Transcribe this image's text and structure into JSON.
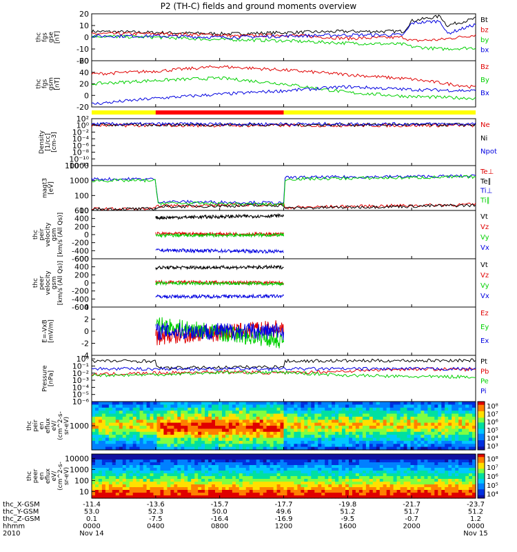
{
  "title": "P2 (TH-C) fields and ground moments overview",
  "colors": {
    "black": "#000000",
    "red": "#e00000",
    "green": "#00d000",
    "blue": "#0000e0"
  },
  "chart_data": [
    {
      "type": "line",
      "name": "thc_fgs_gse",
      "ylabel": [
        "thc",
        "fgs",
        "gse",
        "[nT]"
      ],
      "ylim": [
        -20,
        20
      ],
      "yticks": [
        -20,
        -10,
        0,
        10,
        20
      ],
      "ytick_labels": [
        "-20",
        "-10",
        "0",
        "10",
        "20"
      ],
      "series": [
        {
          "name": "Bt",
          "color": "#000000",
          "x": [
            0,
            4,
            8,
            9,
            12,
            16,
            19.5,
            20,
            21.8,
            22.2,
            24
          ],
          "y": [
            5,
            4,
            3,
            3,
            4,
            5,
            5,
            14,
            18,
            10,
            16
          ]
        },
        {
          "name": "bz",
          "color": "#e00000",
          "x": [
            0,
            4,
            8,
            9,
            12,
            16,
            19.5,
            20,
            21.8,
            24
          ],
          "y": [
            3,
            3,
            2,
            1,
            2,
            -1,
            0,
            -3,
            -2,
            2
          ]
        },
        {
          "name": "by",
          "color": "#00d000",
          "x": [
            0,
            4,
            8,
            9,
            12,
            16,
            19.5,
            20,
            21.8,
            24
          ],
          "y": [
            1,
            0,
            -2,
            -2,
            -3,
            -5,
            -6,
            -8,
            -10,
            -9
          ]
        },
        {
          "name": "bx",
          "color": "#0000e0",
          "x": [
            0,
            4,
            8,
            9,
            12,
            16,
            19.5,
            20,
            21.8,
            22.2,
            24
          ],
          "y": [
            1,
            1,
            0,
            0,
            1,
            2,
            2,
            12,
            14,
            3,
            11
          ]
        }
      ]
    },
    {
      "type": "line",
      "name": "thc_fgs_gsm",
      "ylabel": [
        "thc",
        "fgs",
        "gsm",
        "[nT]"
      ],
      "ylim": [
        -20,
        60
      ],
      "yticks": [
        -20,
        0,
        20,
        40,
        60
      ],
      "ytick_labels": [
        "-20",
        "0",
        "20",
        "40",
        "60"
      ],
      "series": [
        {
          "name": "Bz",
          "color": "#e00000",
          "x": [
            0,
            4,
            8,
            12,
            16,
            20,
            24
          ],
          "y": [
            37,
            42,
            50,
            44,
            36,
            28,
            14
          ]
        },
        {
          "name": "By",
          "color": "#00d000",
          "x": [
            0,
            4,
            8,
            12,
            16,
            20,
            24
          ],
          "y": [
            20,
            26,
            30,
            20,
            5,
            -2,
            -5
          ]
        },
        {
          "name": "Bx",
          "color": "#0000e0",
          "x": [
            0,
            4,
            8,
            12,
            16,
            20,
            24
          ],
          "y": [
            -15,
            -5,
            2,
            8,
            15,
            10,
            8
          ]
        }
      ]
    },
    {
      "type": "line",
      "name": "density",
      "log": true,
      "ylabel": [
        "Density",
        "[1/cc]",
        "[cm-3]"
      ],
      "ylim": [
        -12,
        2
      ],
      "yticks": [
        2,
        0,
        -2,
        -4,
        -6,
        -8,
        -10,
        -12
      ],
      "ytick_labels": [
        "10²",
        "10⁰",
        "10⁻²",
        "10⁻⁴",
        "10⁻⁶",
        "10⁻⁸",
        "10⁻¹⁰",
        "10⁻¹²"
      ],
      "series": [
        {
          "name": "Ne",
          "color": "#e00000",
          "x": [
            0,
            24
          ],
          "y": [
            0,
            0
          ]
        },
        {
          "name": "Ni",
          "color": "#000000",
          "x": [
            0,
            24
          ],
          "y": [
            0.2,
            0.2
          ]
        },
        {
          "name": "Npot",
          "color": "#0000e0",
          "x": [
            0,
            24
          ],
          "y": [
            0.4,
            0.4
          ]
        }
      ]
    },
    {
      "type": "line",
      "name": "temperature",
      "log": true,
      "ylabel": [
        "magt3",
        "[eV]"
      ],
      "ylim": [
        1,
        4
      ],
      "yticks": [
        1,
        2,
        3,
        4
      ],
      "ytick_labels": [
        "10",
        "100",
        "1000",
        "10000"
      ],
      "series": [
        {
          "name": "Te⊥",
          "color": "#e00000",
          "x": [
            0,
            4,
            4.1,
            12,
            12.1,
            24
          ],
          "y": [
            1.1,
            1.1,
            1.3,
            1.4,
            1.2,
            1.4
          ]
        },
        {
          "name": "Te∥",
          "color": "#000000",
          "x": [
            0,
            4,
            4.1,
            12,
            12.1,
            24
          ],
          "y": [
            1.1,
            1.1,
            1.25,
            1.35,
            1.15,
            1.35
          ]
        },
        {
          "name": "Ti⊥",
          "color": "#0000e0",
          "x": [
            0,
            4,
            4.1,
            12,
            12.1,
            24
          ],
          "y": [
            3.1,
            3.1,
            1.6,
            1.5,
            3.2,
            3.3
          ]
        },
        {
          "name": "Ti∥",
          "color": "#00d000",
          "x": [
            0,
            4,
            4.1,
            12,
            12.1,
            24
          ],
          "y": [
            3.0,
            3.0,
            1.5,
            1.4,
            3.1,
            3.25
          ]
        }
      ]
    },
    {
      "type": "line",
      "name": "thc_peir_velocity",
      "span": [
        4,
        12
      ],
      "ylabel": [
        "thc",
        "peir",
        "velocity",
        "gsm",
        "[km/s (All Qs)]"
      ],
      "ylim": [
        -600,
        600
      ],
      "yticks": [
        -600,
        -400,
        -200,
        0,
        200,
        400,
        600
      ],
      "ytick_labels": [
        "-600",
        "-400",
        "-200",
        "0",
        "200",
        "400",
        "600"
      ],
      "series": [
        {
          "name": "Vt",
          "color": "#000000",
          "x": [
            4,
            12
          ],
          "y": [
            420,
            470
          ]
        },
        {
          "name": "Vz",
          "color": "#e00000",
          "x": [
            4,
            12
          ],
          "y": [
            20,
            10
          ]
        },
        {
          "name": "Vy",
          "color": "#00d000",
          "x": [
            4,
            12
          ],
          "y": [
            -20,
            -10
          ]
        },
        {
          "name": "Vx",
          "color": "#0000e0",
          "x": [
            4,
            12
          ],
          "y": [
            -390,
            -420
          ]
        }
      ]
    },
    {
      "type": "line",
      "name": "thc_peer_velocity",
      "span": [
        4,
        12
      ],
      "ylabel": [
        "thc",
        "peer",
        "velocity",
        "gsm",
        "[km/s (All Qs)]"
      ],
      "ylim": [
        -600,
        600
      ],
      "yticks": [
        -600,
        -400,
        -200,
        0,
        200,
        400,
        600
      ],
      "ytick_labels": [
        "-600",
        "-400",
        "-200",
        "0",
        "200",
        "400",
        "600"
      ],
      "series": [
        {
          "name": "Vt",
          "color": "#000000",
          "x": [
            4,
            12
          ],
          "y": [
            380,
            390
          ]
        },
        {
          "name": "Vz",
          "color": "#e00000",
          "x": [
            4,
            12
          ],
          "y": [
            20,
            0
          ]
        },
        {
          "name": "Vy",
          "color": "#00d000",
          "x": [
            4,
            12
          ],
          "y": [
            -10,
            -20
          ]
        },
        {
          "name": "Vx",
          "color": "#0000e0",
          "x": [
            4,
            12
          ],
          "y": [
            -340,
            -330
          ]
        }
      ]
    },
    {
      "type": "line",
      "name": "efield",
      "span": [
        4,
        12
      ],
      "ylabel": [
        "E=-VxB",
        "[mV/m]"
      ],
      "ylim": [
        -4,
        4
      ],
      "yticks": [
        -4,
        -2,
        0,
        2,
        4
      ],
      "ytick_labels": [
        "-4",
        "-2",
        "0",
        "2",
        "4"
      ],
      "series": [
        {
          "name": "Ez",
          "color": "#e00000",
          "x": [
            4,
            12
          ],
          "y": [
            -1,
            0.5
          ]
        },
        {
          "name": "Ey",
          "color": "#00d000",
          "x": [
            4,
            12
          ],
          "y": [
            1,
            -1.5
          ]
        },
        {
          "name": "Ex",
          "color": "#0000e0",
          "x": [
            4,
            12
          ],
          "y": [
            0,
            0
          ]
        }
      ]
    },
    {
      "type": "line",
      "name": "pressure",
      "log": true,
      "ylabel": [
        "Pressure",
        "[nPa]"
      ],
      "ylim": [
        -6,
        0.5
      ],
      "yticks": [
        0,
        -1,
        -2,
        -3,
        -4,
        -5,
        -6
      ],
      "ytick_labels": [
        "10⁰",
        "10⁻¹",
        "10⁻²",
        "10⁻³",
        "10⁻⁴",
        "10⁻⁵",
        "10⁻⁶"
      ],
      "series": [
        {
          "name": "Pt",
          "color": "#000000",
          "x": [
            0,
            4,
            4.1,
            12,
            12.1,
            24
          ],
          "y": [
            -0.3,
            -0.3,
            -1.3,
            -1.1,
            -0.3,
            -0.2
          ]
        },
        {
          "name": "Pb",
          "color": "#e00000",
          "x": [
            0,
            4,
            8,
            12,
            16,
            20,
            24
          ],
          "y": [
            -2.2,
            -2.0,
            -1.8,
            -2.0,
            -1.7,
            -1.4,
            -1.5
          ]
        },
        {
          "name": "Pe",
          "color": "#00d000",
          "x": [
            0,
            4,
            8,
            12,
            16,
            20,
            24
          ],
          "y": [
            -2.3,
            -2.2,
            -1.9,
            -1.9,
            -2.3,
            -2.5,
            -2.5
          ]
        },
        {
          "name": "Pi",
          "color": "#0000e0",
          "x": [
            0,
            24
          ],
          "y": [
            -1.4,
            -1.4
          ]
        }
      ]
    },
    {
      "type": "heatmap",
      "name": "thc_peir_en_eflux",
      "ylabel": [
        "thc",
        "peir",
        "en",
        "eflux",
        "eV/",
        "(cm^2-s-",
        "sr-eV)"
      ],
      "yticks": [
        1000
      ],
      "ytick_labels": [
        "1000"
      ],
      "colorbar": [
        "10³",
        "10⁴",
        "10⁵",
        "10⁶",
        "10⁷",
        "10⁸"
      ]
    },
    {
      "type": "heatmap",
      "name": "thc_peer_en_eflux",
      "ylabel": [
        "thc",
        "peer",
        "en",
        "eflux",
        "eV/",
        "(cm^2-s-",
        "sr-eV)"
      ],
      "yticks": [
        10,
        100,
        1000,
        10000
      ],
      "ytick_labels": [
        "10",
        "100",
        "1000",
        "10000"
      ],
      "colorbar": [
        "10⁴",
        "10⁵",
        "10⁶",
        "10⁷",
        "10⁸"
      ]
    }
  ],
  "footer": {
    "rows": [
      {
        "label": "thc_X-GSM",
        "values": [
          "-11.4",
          "-13.6",
          "-15.7",
          "-17.7",
          "-19.8",
          "-21.7",
          "-23.7"
        ]
      },
      {
        "label": "thc_Y-GSM",
        "values": [
          "53.0",
          "52.3",
          "50.0",
          "49.6",
          "51.2",
          "51.7",
          "51.2"
        ]
      },
      {
        "label": "thc_Z-GSM",
        "values": [
          "0.1",
          "-7.5",
          "-16.4",
          "-16.9",
          "-9.5",
          "-0.7",
          "1.2"
        ]
      },
      {
        "label": "hhmm",
        "values": [
          "0000",
          "0400",
          "0800",
          "1200",
          "1600",
          "2000",
          "0000"
        ]
      },
      {
        "label": "2010",
        "values": [
          "Nov 14",
          "",
          "",
          "",
          "",
          "",
          "Nov 15"
        ]
      }
    ]
  }
}
